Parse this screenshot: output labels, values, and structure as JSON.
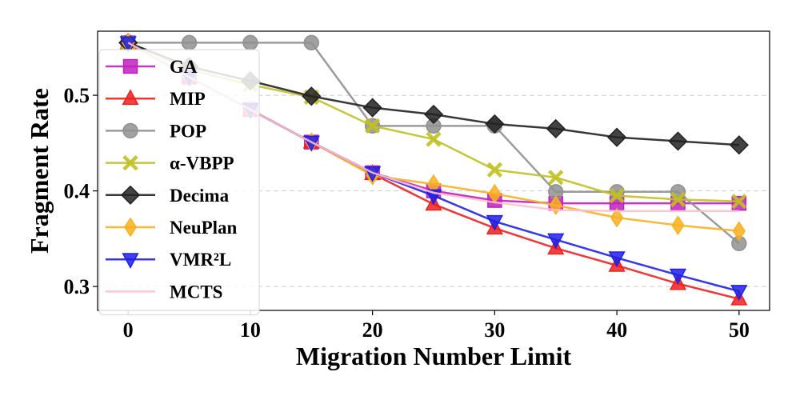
{
  "chart_data": {
    "type": "line",
    "xlabel": "Migration Number Limit",
    "ylabel": "Fragment Rate",
    "xlim": [
      -2.5,
      52.5
    ],
    "ylim": [
      0.275,
      0.567
    ],
    "xticks": [
      0,
      10,
      20,
      30,
      40,
      50
    ],
    "yticks": [
      0.3,
      0.4,
      0.5
    ],
    "ytick_labels": [
      "0.3",
      "0.4",
      "0.5"
    ],
    "grid": "horizontal dashed",
    "legend_position": "upper-left",
    "x": [
      0,
      5,
      10,
      15,
      20,
      25,
      30,
      35,
      40,
      45,
      50
    ],
    "series": [
      {
        "name": "GA",
        "color": "#c020c0",
        "marker": "square",
        "values": [
          0.555,
          0.519,
          0.485,
          0.451,
          0.419,
          0.4,
          0.39,
          0.387,
          0.387,
          0.387,
          0.387
        ]
      },
      {
        "name": "MIP",
        "color": "#f02020",
        "marker": "triangle-up",
        "values": [
          0.555,
          0.519,
          0.485,
          0.451,
          0.418,
          0.386,
          0.361,
          0.34,
          0.322,
          0.303,
          0.287
        ]
      },
      {
        "name": "POP",
        "color": "#909090",
        "marker": "circle",
        "values": [
          0.555,
          0.555,
          0.555,
          0.555,
          0.468,
          0.468,
          0.468,
          0.399,
          0.399,
          0.399,
          0.345
        ]
      },
      {
        "name": "α-VBPP",
        "color": "#c0c020",
        "marker": "x",
        "values": [
          0.555,
          0.527,
          0.511,
          0.498,
          0.468,
          0.454,
          0.422,
          0.414,
          0.395,
          0.391,
          0.389
        ]
      },
      {
        "name": "Decima",
        "color": "#222222",
        "marker": "diamond",
        "values": [
          0.555,
          0.53,
          0.515,
          0.499,
          0.487,
          0.48,
          0.47,
          0.465,
          0.456,
          0.452,
          0.448
        ]
      },
      {
        "name": "NeuPlan",
        "color": "#f8b020",
        "marker": "thin-diamond",
        "values": [
          0.555,
          0.519,
          0.485,
          0.451,
          0.416,
          0.407,
          0.397,
          0.385,
          0.372,
          0.364,
          0.358
        ]
      },
      {
        "name": "VMR²L",
        "color": "#2020e8",
        "marker": "triangle-down",
        "values": [
          0.555,
          0.519,
          0.485,
          0.451,
          0.419,
          0.395,
          0.368,
          0.349,
          0.33,
          0.312,
          0.295
        ]
      },
      {
        "name": "MCTS",
        "color": "#ffc0cb",
        "marker": "none",
        "values": [
          0.555,
          0.519,
          0.485,
          0.451,
          0.419,
          0.398,
          0.388,
          0.38,
          0.379,
          0.379,
          0.379
        ]
      }
    ]
  }
}
